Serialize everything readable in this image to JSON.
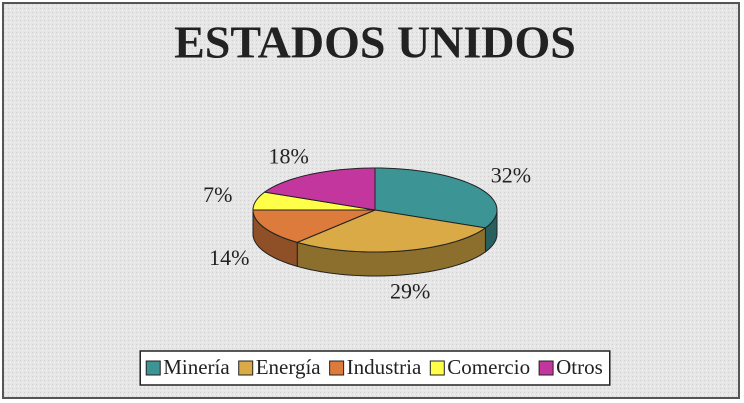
{
  "chart_data": {
    "type": "pie3d",
    "title": "ESTADOS UNIDOS",
    "categories": [
      "Minería",
      "Energía",
      "Industria",
      "Comercio",
      "Otros"
    ],
    "values": [
      32,
      29,
      14,
      7,
      18
    ],
    "value_labels": [
      "32%",
      "29%",
      "14%",
      "7%",
      "18%"
    ],
    "colors": [
      "#3d9494",
      "#d9aa45",
      "#dc7b3c",
      "#ffff4a",
      "#c2369e"
    ],
    "legend": "bottom"
  }
}
